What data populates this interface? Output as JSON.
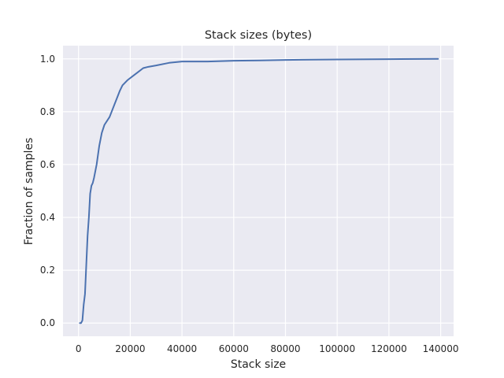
{
  "chart_data": {
    "type": "line",
    "title": "Stack sizes (bytes)",
    "xlabel": "Stack size",
    "ylabel": "Fraction of samples",
    "xlim": [
      -6000,
      145000
    ],
    "ylim": [
      -0.05,
      1.05
    ],
    "xticks": [
      0,
      20000,
      40000,
      60000,
      80000,
      100000,
      120000,
      140000
    ],
    "xtick_labels": [
      "0",
      "20000",
      "40000",
      "60000",
      "80000",
      "100000",
      "120000",
      "140000"
    ],
    "yticks": [
      0.0,
      0.2,
      0.4,
      0.6,
      0.8,
      1.0
    ],
    "ytick_labels": [
      "0.0",
      "0.2",
      "0.4",
      "0.6",
      "0.8",
      "1.0"
    ],
    "grid": true,
    "series": [
      {
        "color": "#4c72b0",
        "x": [
          500,
          1000,
          1500,
          2000,
          2500,
          3000,
          3500,
          4000,
          4500,
          5000,
          5500,
          6000,
          7000,
          8000,
          9000,
          10000,
          12000,
          14000,
          16000,
          17000,
          19000,
          21000,
          23000,
          25000,
          27000,
          30000,
          35000,
          40000,
          50000,
          60000,
          70000,
          80000,
          90000,
          100000,
          120000,
          139000
        ],
        "y": [
          0.0,
          0.0,
          0.01,
          0.07,
          0.11,
          0.22,
          0.33,
          0.4,
          0.49,
          0.52,
          0.53,
          0.55,
          0.6,
          0.67,
          0.72,
          0.75,
          0.78,
          0.83,
          0.88,
          0.9,
          0.92,
          0.935,
          0.95,
          0.965,
          0.97,
          0.975,
          0.985,
          0.99,
          0.99,
          0.993,
          0.994,
          0.996,
          0.997,
          0.998,
          0.999,
          1.0
        ]
      }
    ]
  }
}
